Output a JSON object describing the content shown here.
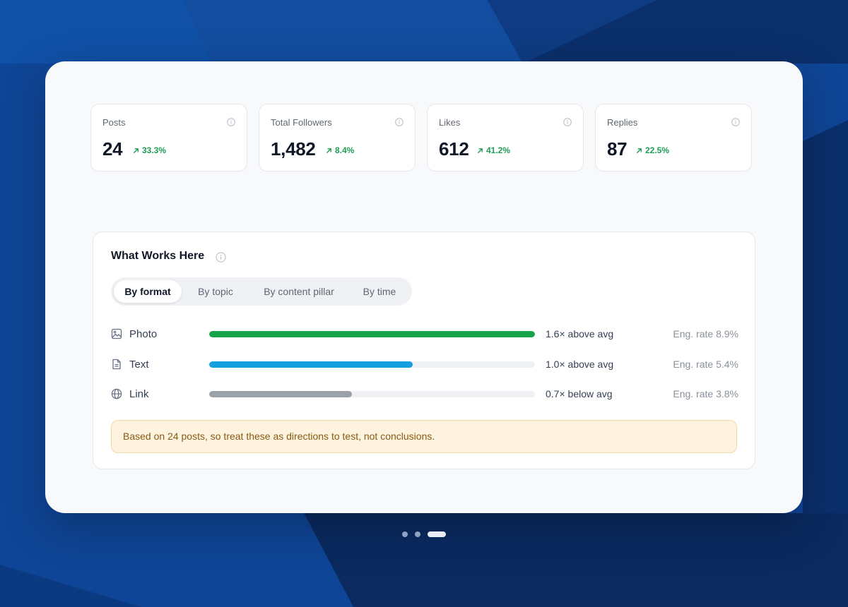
{
  "stats": [
    {
      "label": "Posts",
      "value": "24",
      "delta": "33.3%"
    },
    {
      "label": "Total Followers",
      "value": "1,482",
      "delta": "8.4%"
    },
    {
      "label": "Likes",
      "value": "612",
      "delta": "41.2%"
    },
    {
      "label": "Replies",
      "value": "87",
      "delta": "22.5%"
    }
  ],
  "panel": {
    "title": "What Works Here",
    "tabs": [
      "By format",
      "By topic",
      "By content pillar",
      "By time"
    ],
    "active_tab": "By format",
    "rows": [
      {
        "icon": "image-icon",
        "label": "Photo",
        "ratio": 1.6,
        "comparison": "1.6× above avg",
        "eng": "Eng. rate 8.9%",
        "color": "#16a34a"
      },
      {
        "icon": "document-icon",
        "label": "Text",
        "ratio": 1.0,
        "comparison": "1.0× above avg",
        "eng": "Eng. rate 5.4%",
        "color": "#14a0de"
      },
      {
        "icon": "globe-icon",
        "label": "Link",
        "ratio": 0.7,
        "comparison": "0.7× below avg",
        "eng": "Eng. rate 3.8%",
        "color": "#9aa1ab"
      }
    ],
    "note": "Based on 24 posts, so treat these as directions to test, not conclusions."
  },
  "carousel": {
    "count": 3,
    "active": 3
  },
  "colors": {
    "positive": "#1f9d55",
    "background": "#0f4596"
  }
}
